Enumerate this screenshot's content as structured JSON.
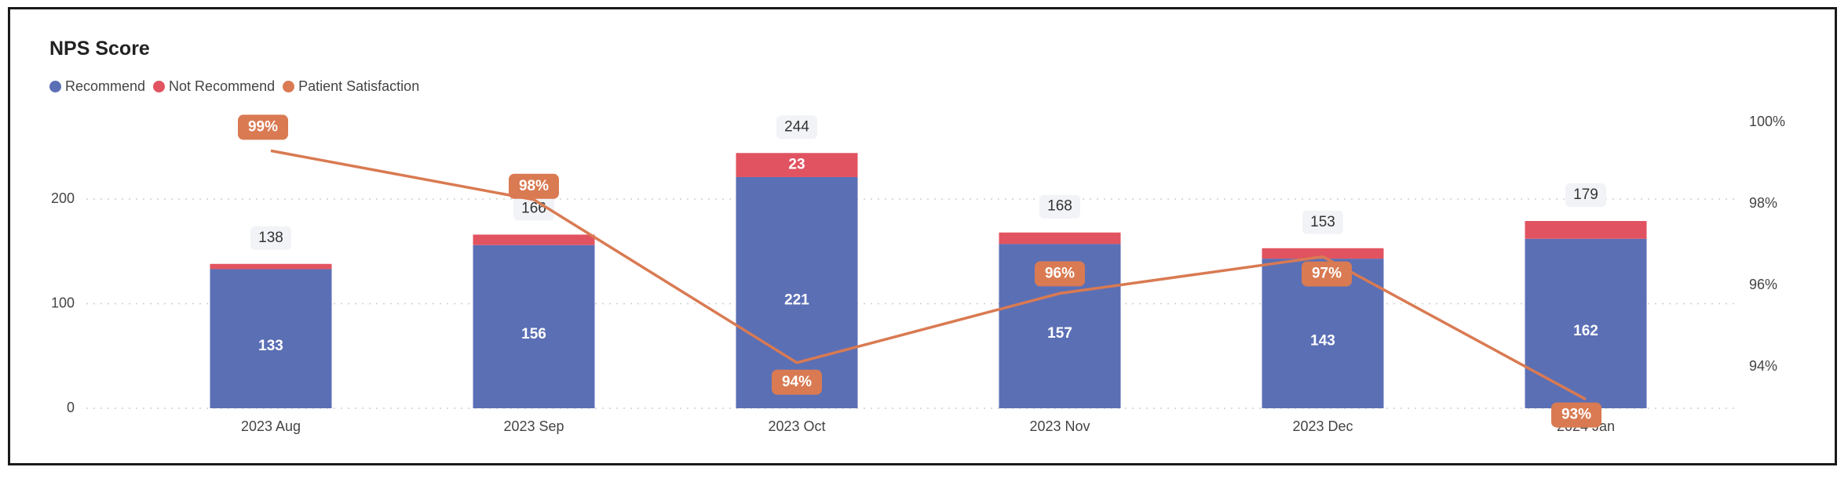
{
  "chart_data": {
    "type": "bar",
    "title": "NPS Score",
    "categories": [
      "2023 Aug",
      "2023 Sep",
      "2023 Oct",
      "2023 Nov",
      "2023 Dec",
      "2024 Jan"
    ],
    "series": [
      {
        "name": "Recommend",
        "type": "bar",
        "axis": "left",
        "color": "#5B6FB5",
        "values": [
          133,
          156,
          221,
          157,
          143,
          162
        ],
        "labels": [
          "133",
          "156",
          "221",
          "157",
          "143",
          "162"
        ]
      },
      {
        "name": "Not Recommend",
        "type": "bar",
        "axis": "left",
        "color": "#E15360",
        "values": [
          5,
          10,
          23,
          11,
          10,
          17
        ],
        "labels": [
          "",
          "",
          "23",
          "",
          "",
          ""
        ]
      },
      {
        "name": "Patient Satisfaction",
        "type": "line",
        "axis": "right",
        "color": "#D97A52",
        "values": [
          99.3,
          98.1,
          94.1,
          95.8,
          96.7,
          93.2
        ],
        "labels": [
          "99%",
          "98%",
          "94%",
          "96%",
          "97%",
          "93%"
        ]
      }
    ],
    "totals": [
      "138",
      "166",
      "244",
      "168",
      "153",
      "179"
    ],
    "yleft": {
      "lim": [
        0,
        280
      ],
      "ticks": [
        0,
        100,
        200
      ],
      "tick_labels": [
        "0",
        "100",
        "200"
      ]
    },
    "yright": {
      "lim": [
        93,
        100.3
      ],
      "ticks": [
        94,
        96,
        98,
        100
      ],
      "tick_labels": [
        "94%",
        "96%",
        "98%",
        "100%"
      ]
    },
    "xlabel": "",
    "ylabel": "",
    "grid": true,
    "legend_position": "top-left"
  }
}
